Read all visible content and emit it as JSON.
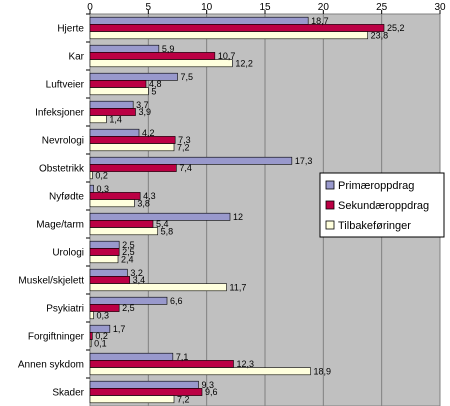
{
  "chart_data": {
    "type": "bar",
    "orientation": "horizontal",
    "xlim": [
      0,
      30
    ],
    "ticks": [
      "0",
      "5",
      "10",
      "15",
      "20",
      "25",
      "30"
    ],
    "grid": true,
    "legend_position": "right",
    "categories": [
      "Hjerte",
      "Kar",
      "Luftveier",
      "Infeksjoner",
      "Nevrologi",
      "Obstetrikk",
      "Nyfødte",
      "Mage/tarm",
      "Urologi",
      "Muskel/skjelett",
      "Psykiatri",
      "Forgiftninger",
      "Annen sykdom",
      "Skader"
    ],
    "series": [
      {
        "name": "Primæroppdrag",
        "color": "#9999cc",
        "values": [
          18.7,
          5.9,
          7.5,
          3.7,
          4.2,
          17.3,
          0.3,
          12,
          2.5,
          3.2,
          6.6,
          1.7,
          7.1,
          9.3
        ],
        "labels": [
          "18,7",
          "5,9",
          "7,5",
          "3,7",
          "4,2",
          "17,3",
          "0,3",
          "12",
          "2,5",
          "3,2",
          "6,6",
          "1,7",
          "7,1",
          "9,3"
        ]
      },
      {
        "name": "Sekundæroppdrag",
        "color": "#bb0044",
        "values": [
          25.2,
          10.7,
          4.8,
          3.9,
          7.3,
          7.4,
          4.3,
          5.4,
          2.5,
          3.4,
          2.5,
          0.2,
          12.3,
          9.6
        ],
        "labels": [
          "25,2",
          "10,7",
          "4,8",
          "3,9",
          "7,3",
          "7,4",
          "4,3",
          "5,4",
          "2,5",
          "3,4",
          "2,5",
          "0,2",
          "12,3",
          "9,6"
        ]
      },
      {
        "name": "Tilbakeføringer",
        "color": "#ffffdd",
        "values": [
          23.8,
          12.2,
          5,
          1.4,
          7.2,
          0.2,
          3.8,
          5.8,
          2.4,
          11.7,
          0.3,
          0.1,
          18.9,
          7.2
        ],
        "labels": [
          "23,8",
          "12,2",
          "5",
          "1,4",
          "7,2",
          "0,2",
          "3,8",
          "5,8",
          "2,4",
          "11,7",
          "0,3",
          "0,1",
          "18,9",
          "7,2"
        ]
      }
    ]
  }
}
